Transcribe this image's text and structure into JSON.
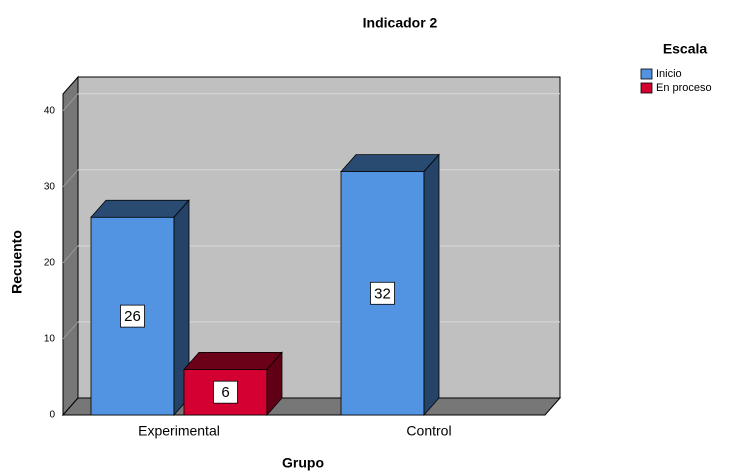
{
  "chart_data": {
    "type": "bar3d",
    "title": "Indicador 2",
    "x_label": "Grupo",
    "y_label": "Recuento",
    "legend_title": "Escala",
    "categories": [
      "Experimental",
      "Control"
    ],
    "series": [
      {
        "name": "Inicio",
        "color": "#5294e2",
        "values": [
          26,
          32
        ]
      },
      {
        "name": "En proceso",
        "color": "#d50032",
        "values": [
          6,
          null
        ]
      }
    ],
    "ylim": [
      0,
      42.2
    ],
    "yticks": [
      0,
      10,
      20,
      30,
      40
    ],
    "grid": true,
    "legend": "right"
  }
}
